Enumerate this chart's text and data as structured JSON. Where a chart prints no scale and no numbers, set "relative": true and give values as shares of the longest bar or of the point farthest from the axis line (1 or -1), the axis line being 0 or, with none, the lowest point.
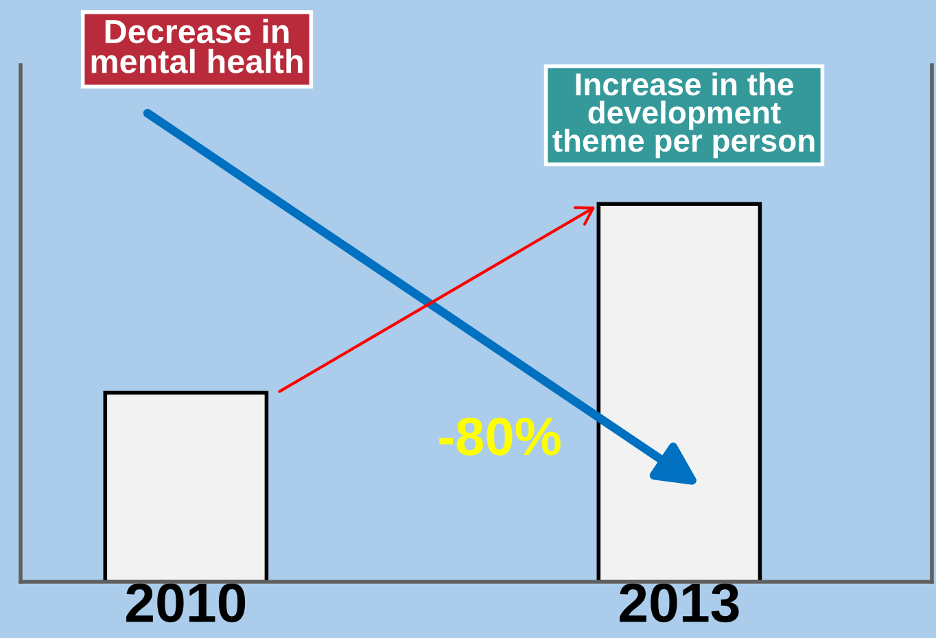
{
  "chart_data": {
    "type": "bar",
    "relative": true,
    "categories": [
      "2010",
      "2013"
    ],
    "values": [
      0.5,
      1
    ],
    "color": "#f2f2f2",
    "annotations": [
      "Decrease in\nmental health",
      "Increase in the\ndevelopment\ntheme per person",
      "-80%"
    ],
    "grid": false,
    "legend": false
  }
}
